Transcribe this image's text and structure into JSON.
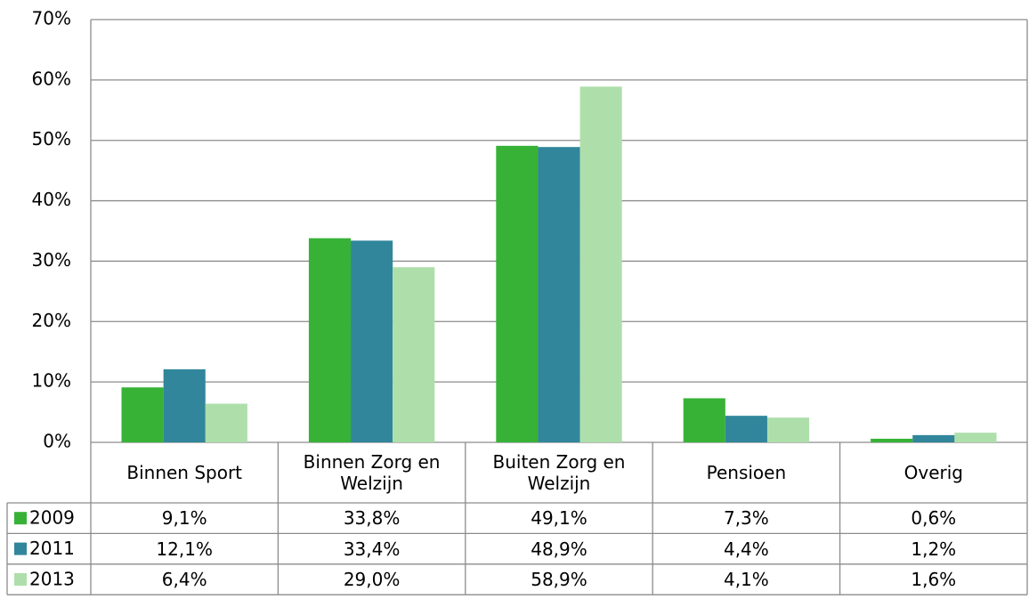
{
  "chart_data": {
    "type": "bar",
    "categories": [
      "Binnen Sport",
      "Binnen Zorg en Welzijn",
      "Buiten Zorg en Welzijn",
      "Pensioen",
      "Overig"
    ],
    "series": [
      {
        "name": "2009",
        "color": "#37b237",
        "values": [
          9.1,
          33.8,
          49.1,
          7.3,
          0.6
        ],
        "value_labels": [
          "9,1%",
          "33,8%",
          "49,1%",
          "7,3%",
          "0,6%"
        ]
      },
      {
        "name": "2011",
        "color": "#31869b",
        "values": [
          12.1,
          33.4,
          48.9,
          4.4,
          1.2
        ],
        "value_labels": [
          "12,1%",
          "33,4%",
          "48,9%",
          "4,4%",
          "1,2%"
        ]
      },
      {
        "name": "2013",
        "color": "#aedfab",
        "values": [
          6.4,
          29.0,
          58.9,
          4.1,
          1.6
        ],
        "value_labels": [
          "6,4%",
          "29,0%",
          "58,9%",
          "4,1%",
          "1,6%"
        ]
      }
    ],
    "ylim": [
      0,
      70
    ],
    "yticks": [
      {
        "value": 0,
        "label": "0%"
      },
      {
        "value": 10,
        "label": "10%"
      },
      {
        "value": 20,
        "label": "20%"
      },
      {
        "value": 30,
        "label": "30%"
      },
      {
        "value": 40,
        "label": "40%"
      },
      {
        "value": 50,
        "label": "50%"
      },
      {
        "value": 60,
        "label": "60%"
      },
      {
        "value": 70,
        "label": "70%"
      }
    ],
    "grid": true
  }
}
